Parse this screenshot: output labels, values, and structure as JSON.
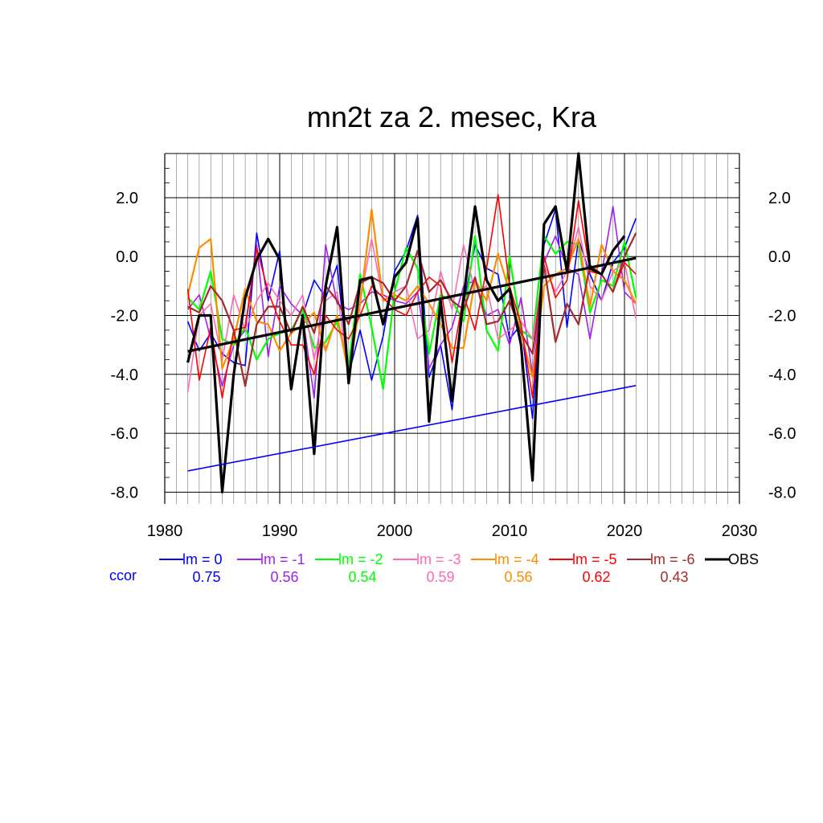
{
  "chart_data": {
    "type": "line",
    "title": "mn2t za 2. mesec, Kra",
    "xlim": [
      1980,
      2030
    ],
    "ylim": [
      -8.4,
      3.5
    ],
    "x_ticks": [
      "1980",
      "1990",
      "2000",
      "2010",
      "2020",
      "2030"
    ],
    "y_ticks": [
      "2.0",
      "0.0",
      "-2.0",
      "-4.0",
      "-6.0",
      "-8.0"
    ],
    "grid": true,
    "years": [
      1982,
      1983,
      1984,
      1985,
      1986,
      1987,
      1988,
      1989,
      1990,
      1991,
      1992,
      1993,
      1994,
      1995,
      1996,
      1997,
      1998,
      1999,
      2000,
      2001,
      2002,
      2003,
      2004,
      2005,
      2006,
      2007,
      2008,
      2009,
      2010,
      2011,
      2012,
      2013,
      2014,
      2015,
      2016,
      2017,
      2018,
      2019,
      2020,
      2021
    ],
    "series": [
      {
        "name": "lm = 0",
        "color": "#0000ff",
        "width": 1.6,
        "values": [
          -2.2,
          -3.2,
          -2.6,
          -3.3,
          -3.6,
          -3.7,
          0.8,
          -1.5,
          0.2,
          -4.4,
          -2.0,
          -0.8,
          -1.4,
          -0.3,
          -4.0,
          -2.5,
          -4.2,
          -2.7,
          -0.5,
          0.2,
          1.4,
          -4.1,
          -3.0,
          -5.2,
          -1.6,
          0.4,
          -0.4,
          -0.6,
          -2.8,
          -2.3,
          -5.5,
          0.4,
          1.6,
          -2.4,
          0.6,
          -0.6,
          -1.5,
          -0.2,
          0.3,
          1.3
        ]
      },
      {
        "name": "lm = -1",
        "color": "#a020f0",
        "width": 1.6,
        "values": [
          -1.8,
          -1.3,
          -2.8,
          -4.4,
          -3.0,
          -2.5,
          0.4,
          -3.4,
          -1.0,
          -1.6,
          -2.0,
          -4.8,
          0.4,
          -1.6,
          -1.8,
          -1.6,
          -1.2,
          -1.3,
          -1.5,
          -1.6,
          -1.2,
          -3.8,
          -3.0,
          -2.4,
          -1.0,
          -0.8,
          -2.0,
          -1.8,
          -3.0,
          -1.4,
          -4.0,
          -0.2,
          0.7,
          -0.4,
          -0.6,
          -2.8,
          -0.6,
          1.7,
          -1.2,
          -1.6
        ]
      },
      {
        "name": "lm = -2",
        "color": "#00ff00",
        "width": 2.2,
        "values": [
          -1.4,
          -1.8,
          -0.5,
          -2.8,
          -3.0,
          -2.4,
          -3.5,
          -2.8,
          -2.6,
          -2.5,
          -1.8,
          -3.1,
          -2.9,
          -2.2,
          -3.7,
          -0.6,
          -2.4,
          -4.5,
          -1.2,
          0.3,
          -0.4,
          -3.3,
          -1.3,
          -1.5,
          -2.2,
          0.7,
          -2.5,
          -3.2,
          0.0,
          -2.5,
          -2.8,
          0.7,
          0.1,
          0.5,
          0.4,
          -1.9,
          -0.8,
          -1.0,
          0.5,
          -1.4
        ]
      },
      {
        "name": "lm = -3",
        "color": "#ff69b4",
        "width": 1.6,
        "values": [
          -4.6,
          -2.0,
          -1.6,
          -3.5,
          -1.3,
          -2.5,
          -1.5,
          -0.9,
          -1.5,
          -2.0,
          -1.3,
          -3.5,
          -1.5,
          -1.2,
          -4.0,
          -1.5,
          0.6,
          -1.5,
          -1.2,
          -1.0,
          -2.8,
          -2.5,
          -0.5,
          -1.8,
          0.4,
          -1.2,
          -1.0,
          -2.8,
          -2.5,
          -2.2,
          -2.8,
          -0.3,
          -1.2,
          -0.5,
          1.0,
          -1.0,
          -1.5,
          -0.5,
          -0.2,
          -2.1
        ]
      },
      {
        "name": "lm = -4",
        "color": "#ff8c00",
        "width": 2.2,
        "values": [
          -1.3,
          0.3,
          0.6,
          -3.8,
          -2.8,
          -1.1,
          -2.2,
          -2.3,
          -3.2,
          -2.6,
          -2.3,
          -1.9,
          -3.2,
          -2.0,
          -4.0,
          -1.6,
          1.6,
          -1.5,
          -1.3,
          -1.5,
          -1.0,
          -1.6,
          -2.3,
          -3.1,
          -3.1,
          -0.8,
          -1.5,
          0.1,
          -1.2,
          -2.6,
          -4.1,
          -1.0,
          -0.6,
          -0.4,
          0.6,
          -1.7,
          0.4,
          -0.5,
          -0.8,
          -1.6
        ]
      },
      {
        "name": "lm = -5",
        "color": "#ff0000",
        "width": 1.6,
        "values": [
          -1.1,
          -4.2,
          -2.4,
          -4.8,
          -2.5,
          -2.4,
          0.3,
          -1.2,
          -2.2,
          -3.0,
          -3.0,
          -4.0,
          -2.0,
          -2.5,
          -2.8,
          -2.0,
          -1.0,
          -1.4,
          -1.8,
          -2.0,
          -1.2,
          -0.7,
          -1.0,
          -3.6,
          -1.3,
          -2.5,
          -0.4,
          2.1,
          -1.0,
          -2.3,
          -4.8,
          0.0,
          -1.4,
          -0.8,
          1.9,
          -0.5,
          -0.6,
          -1.2,
          -0.2,
          -0.6
        ]
      },
      {
        "name": "lm = -6",
        "color": "#a52a2a",
        "width": 2.2,
        "values": [
          -1.7,
          -1.9,
          -1.0,
          -1.5,
          -2.5,
          -4.4,
          -2.3,
          -1.7,
          -1.7,
          -2.6,
          -1.7,
          -2.6,
          -1.0,
          -1.5,
          -2.3,
          -0.9,
          -0.7,
          -0.9,
          -1.5,
          -1.0,
          0.2,
          -1.2,
          -0.8,
          -1.5,
          -1.8,
          -0.7,
          -2.3,
          -2.2,
          -1.5,
          -2.6,
          -3.3,
          -0.3,
          -2.9,
          -1.6,
          -2.3,
          -0.3,
          -0.6,
          -1.2,
          0.0,
          0.8
        ]
      },
      {
        "name": "OBS",
        "color": "#000000",
        "width": 3.2,
        "values": [
          -3.6,
          -2.0,
          -2.0,
          -8.0,
          -4.0,
          -1.4,
          -0.1,
          0.6,
          -0.1,
          -4.5,
          -2.0,
          -6.7,
          -1.0,
          1.0,
          -4.3,
          -0.8,
          -0.7,
          -2.3,
          -0.7,
          -0.2,
          1.3,
          -5.6,
          -1.5,
          -4.9,
          -1.4,
          1.7,
          -0.8,
          -1.5,
          -1.1,
          -3.0,
          -7.6,
          1.1,
          1.7,
          -0.5,
          3.5,
          -0.4,
          -0.6,
          0.2,
          0.7,
          null
        ]
      }
    ],
    "trend_lines": [
      {
        "color": "#0000ff",
        "width": 1.6,
        "x": [
          1982,
          2021
        ],
        "y": [
          -7.28,
          -4.38
        ]
      },
      {
        "color": "#000000",
        "width": 3.2,
        "x": [
          1982,
          2021
        ],
        "y": [
          -3.22,
          -0.05
        ]
      }
    ],
    "legend_prefix": "ccor",
    "legend_prefix_color": "#0000ff",
    "legend": [
      {
        "label": "lm = 0",
        "ccor": "0.75",
        "color": "#0000ff"
      },
      {
        "label": "lm = -1",
        "ccor": "0.56",
        "color": "#a020f0"
      },
      {
        "label": "lm = -2",
        "ccor": "0.54",
        "color": "#00ff00"
      },
      {
        "label": "lm = -3",
        "ccor": "0.59",
        "color": "#ff69b4"
      },
      {
        "label": "lm = -4",
        "ccor": "0.56",
        "color": "#ff8c00"
      },
      {
        "label": "lm = -5",
        "ccor": "0.62",
        "color": "#ff0000"
      },
      {
        "label": "lm = -6",
        "ccor": "0.43",
        "color": "#a52a2a"
      },
      {
        "label": "OBS",
        "ccor": "",
        "color": "#000000"
      }
    ]
  }
}
